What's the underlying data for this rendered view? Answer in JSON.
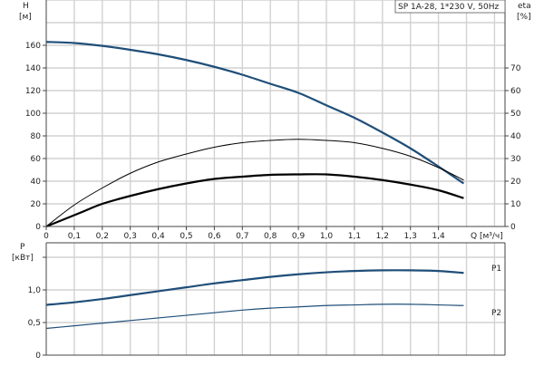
{
  "chart_data": [
    {
      "type": "line",
      "title": "SP 1A-28, 1*230 V, 50Hz",
      "xlabel": "Q [м³/ч]",
      "ylabel": "H",
      "ylabel_unit": "[м]",
      "y2label": "eta",
      "y2label_unit": "[%]",
      "xlim": [
        0,
        1.65
      ],
      "ylim": [
        0,
        200
      ],
      "y2lim": [
        0,
        100
      ],
      "grid": true,
      "x_ticks": [
        "0",
        "0,1",
        "0,2",
        "0,3",
        "0,4",
        "0,5",
        "0,6",
        "0,7",
        "0,8",
        "0,9",
        "1,0",
        "1,1",
        "1,2",
        "1,3",
        "1,4"
      ],
      "y_ticks": [
        "0",
        "20",
        "40",
        "60",
        "80",
        "100",
        "120",
        "140",
        "160"
      ],
      "y2_ticks": [
        "0",
        "10",
        "20",
        "30",
        "40",
        "50",
        "60",
        "70"
      ],
      "series": [
        {
          "axis": "H",
          "color": "#1f4e79",
          "width": 2.2,
          "x": [
            0,
            0.1,
            0.2,
            0.3,
            0.4,
            0.5,
            0.6,
            0.7,
            0.8,
            0.9,
            1.0,
            1.1,
            1.2,
            1.3,
            1.4,
            1.49
          ],
          "y": [
            163,
            162,
            159.5,
            156,
            152,
            147,
            141,
            134,
            126,
            118,
            107,
            96,
            83,
            69,
            53,
            38
          ]
        },
        {
          "axis": "eta",
          "color": "#000000",
          "width": 1,
          "x": [
            0,
            0.1,
            0.2,
            0.3,
            0.4,
            0.5,
            0.6,
            0.7,
            0.8,
            0.9,
            1.0,
            1.1,
            1.2,
            1.3,
            1.4,
            1.49
          ],
          "y": [
            0,
            9.5,
            17,
            23.5,
            28.5,
            32,
            35,
            37,
            38,
            38.5,
            38,
            37,
            34.5,
            31,
            26,
            20.5
          ]
        },
        {
          "axis": "eta",
          "color": "#000000",
          "width": 2.2,
          "x": [
            0,
            0.13,
            0.2,
            0.3,
            0.4,
            0.5,
            0.6,
            0.7,
            0.8,
            0.9,
            1.0,
            1.1,
            1.2,
            1.3,
            1.4,
            1.49
          ],
          "y": [
            0,
            6.5,
            10,
            13.5,
            16.5,
            19,
            21,
            22,
            22.8,
            23,
            23,
            22,
            20.5,
            18.5,
            16,
            12.5
          ]
        }
      ]
    },
    {
      "type": "line",
      "ylabel": "P",
      "ylabel_unit": "[кВт]",
      "xlim": [
        0,
        1.65
      ],
      "ylim": [
        0,
        1.72
      ],
      "grid": true,
      "y_ticks": [
        "0",
        "0,5",
        "1,0"
      ],
      "series": [
        {
          "name": "P1",
          "color": "#1f4e79",
          "width": 2.2,
          "x": [
            0,
            0.1,
            0.2,
            0.3,
            0.4,
            0.5,
            0.6,
            0.7,
            0.8,
            0.9,
            1.0,
            1.1,
            1.2,
            1.3,
            1.4,
            1.49
          ],
          "y": [
            0.77,
            0.81,
            0.86,
            0.92,
            0.98,
            1.04,
            1.1,
            1.15,
            1.2,
            1.24,
            1.27,
            1.29,
            1.3,
            1.3,
            1.29,
            1.26
          ]
        },
        {
          "name": "P2",
          "color": "#1f4e79",
          "width": 1.2,
          "x": [
            0,
            0.1,
            0.2,
            0.3,
            0.4,
            0.5,
            0.6,
            0.7,
            0.8,
            0.9,
            1.0,
            1.1,
            1.2,
            1.3,
            1.4,
            1.49
          ],
          "y": [
            0.41,
            0.45,
            0.49,
            0.53,
            0.57,
            0.61,
            0.65,
            0.69,
            0.72,
            0.74,
            0.76,
            0.77,
            0.78,
            0.78,
            0.77,
            0.76
          ]
        }
      ]
    }
  ]
}
